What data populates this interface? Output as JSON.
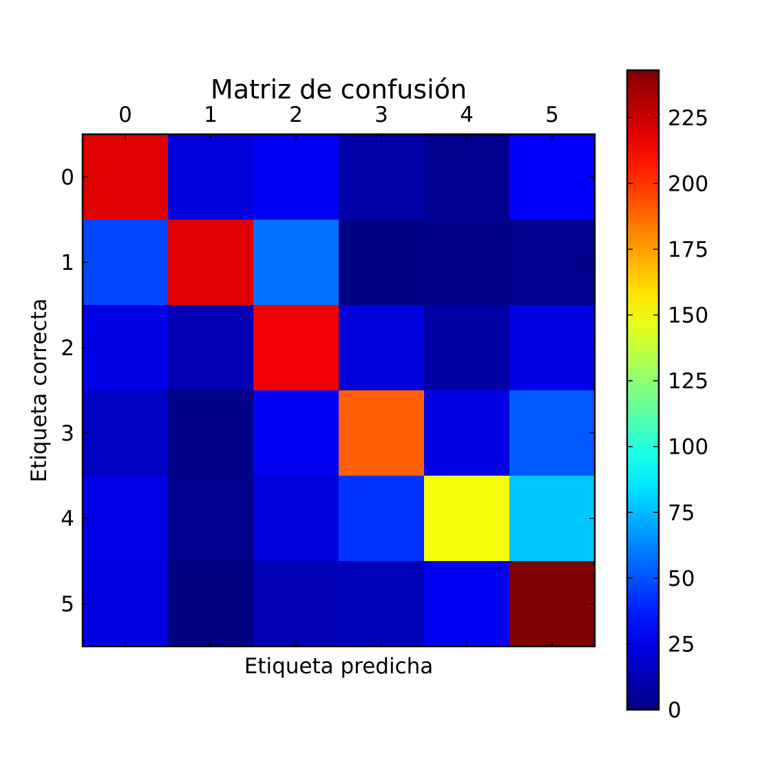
{
  "chart_data": {
    "type": "heatmap",
    "title": "Matriz de confusión",
    "xlabel": "Etiqueta predicha",
    "ylabel": "Etiqueta correcta",
    "x_categories": [
      "0",
      "1",
      "2",
      "3",
      "4",
      "5"
    ],
    "y_categories": [
      "0",
      "1",
      "2",
      "3",
      "4",
      "5"
    ],
    "values": [
      [
        220,
        22,
        27,
        10,
        4,
        30
      ],
      [
        47,
        220,
        57,
        1,
        2,
        3
      ],
      [
        24,
        12,
        216,
        22,
        9,
        24
      ],
      [
        16,
        2,
        27,
        190,
        24,
        52
      ],
      [
        25,
        3,
        22,
        42,
        150,
        78
      ],
      [
        23,
        0,
        12,
        14,
        27,
        243
      ]
    ],
    "colormap": "jet",
    "vmin": 0,
    "vmax": 243,
    "colorbar_ticks": [
      0,
      25,
      50,
      75,
      100,
      125,
      150,
      175,
      200,
      225
    ],
    "x_ticks_position": "top",
    "grid": false
  }
}
